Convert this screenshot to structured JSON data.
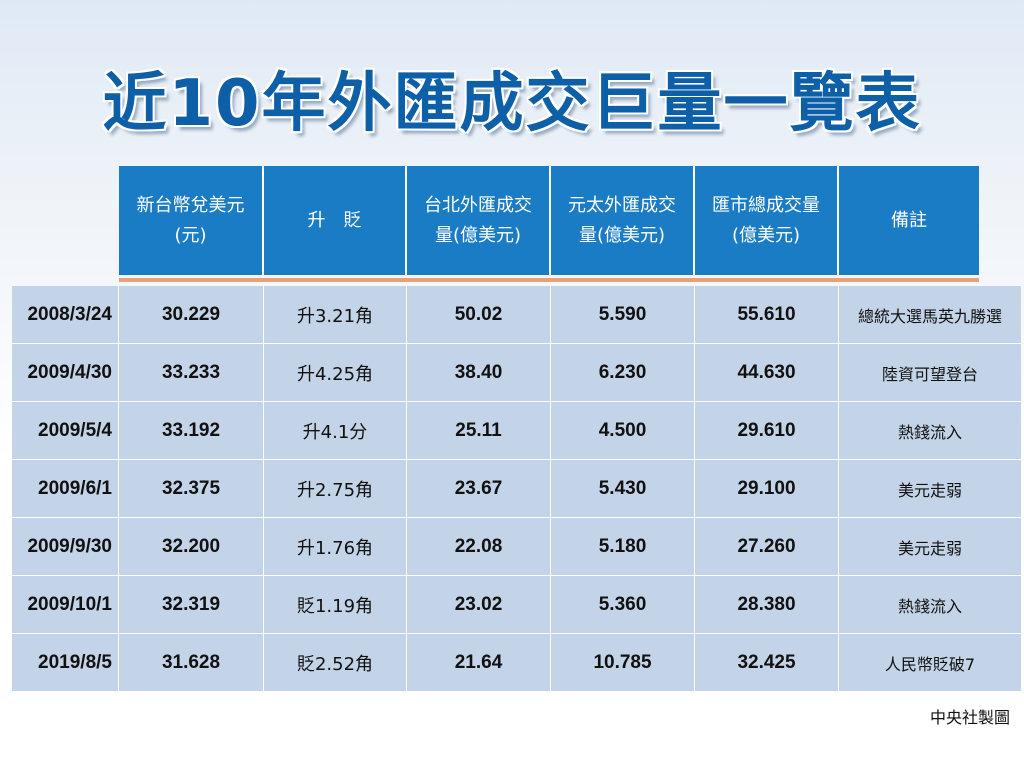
{
  "title": "近10年外匯成交巨量一覽表",
  "header": [
    "新台幣兌美元\n(元)",
    "升　貶",
    "台北外匯成交\n量(億美元)",
    "元太外匯成交\n量(億美元)",
    "匯市總成交量\n(億美元)",
    "備註"
  ],
  "rows": [
    {
      "date": "2008/3/24",
      "rate": "30.229",
      "change": "升3.21角",
      "taipei": "50.02",
      "yuanta": "5.590",
      "total": "55.610",
      "note": "總統大選馬英九勝選"
    },
    {
      "date": "2009/4/30",
      "rate": "33.233",
      "change": "升4.25角",
      "taipei": "38.40",
      "yuanta": "6.230",
      "total": "44.630",
      "note": "陸資可望登台"
    },
    {
      "date": "2009/5/4",
      "rate": "33.192",
      "change": "升4.1分",
      "taipei": "25.11",
      "yuanta": "4.500",
      "total": "29.610",
      "note": "熱錢流入"
    },
    {
      "date": "2009/6/1",
      "rate": "32.375",
      "change": "升2.75角",
      "taipei": "23.67",
      "yuanta": "5.430",
      "total": "29.100",
      "note": "美元走弱"
    },
    {
      "date": "2009/9/30",
      "rate": "32.200",
      "change": "升1.76角",
      "taipei": "22.08",
      "yuanta": "5.180",
      "total": "27.260",
      "note": "美元走弱"
    },
    {
      "date": "2009/10/1",
      "rate": "32.319",
      "change": "貶1.19角",
      "taipei": "23.02",
      "yuanta": "5.360",
      "total": "28.380",
      "note": "熱錢流入"
    },
    {
      "date": "2019/8/5",
      "rate": "31.628",
      "change": "貶2.52角",
      "taipei": "21.64",
      "yuanta": "10.785",
      "total": "32.425",
      "note": "人民幣貶破7"
    }
  ],
  "credit": "中央社製圖"
}
